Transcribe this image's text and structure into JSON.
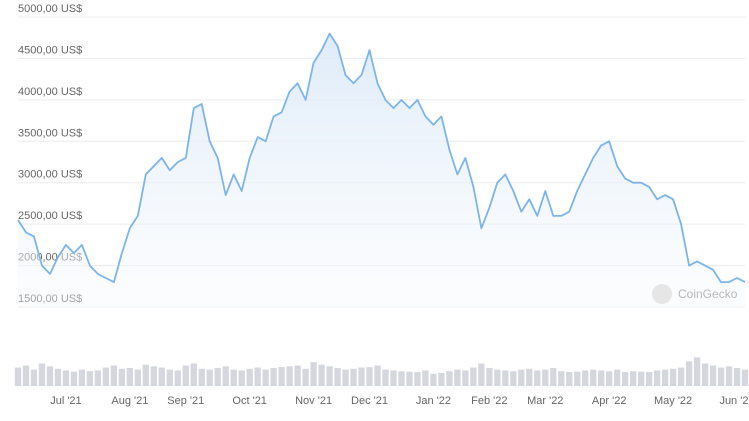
{
  "chart_data": {
    "type": "line",
    "watermark": "CoinGecko",
    "color": "#7cb5ec",
    "grid": true,
    "ylim": [
      1500,
      5000
    ],
    "yticks": [
      {
        "value": 1500,
        "label": "1500,00 US$"
      },
      {
        "value": 2000,
        "label": "2000,00 US$"
      },
      {
        "value": 2500,
        "label": "2500,00 US$"
      },
      {
        "value": 3000,
        "label": "3000,00 US$"
      },
      {
        "value": 3500,
        "label": "3500,00 US$"
      },
      {
        "value": 4000,
        "label": "4000,00 US$"
      },
      {
        "value": 4500,
        "label": "4500,00 US$"
      },
      {
        "value": 5000,
        "label": "5000,00 US$"
      }
    ],
    "categories": [
      null,
      null,
      null,
      null,
      null,
      null,
      "Jul '21",
      null,
      null,
      null,
      null,
      null,
      null,
      null,
      "Aug '21",
      null,
      null,
      null,
      null,
      null,
      null,
      "Sep '21",
      null,
      null,
      null,
      null,
      null,
      null,
      null,
      "Oct '21",
      null,
      null,
      null,
      null,
      null,
      null,
      null,
      "Nov '21",
      null,
      null,
      null,
      null,
      null,
      null,
      "Dec '21",
      null,
      null,
      null,
      null,
      null,
      null,
      null,
      "Jan '22",
      null,
      null,
      null,
      null,
      null,
      null,
      "Feb '22",
      null,
      null,
      null,
      null,
      null,
      null,
      "Mar '22",
      null,
      null,
      null,
      null,
      null,
      null,
      null,
      "Apr '22",
      null,
      null,
      null,
      null,
      null,
      null,
      null,
      "May '22",
      null,
      null,
      null,
      null,
      null,
      null,
      null,
      "Jun '22",
      null
    ],
    "values": [
      2550,
      2400,
      2350,
      2000,
      1900,
      2100,
      2250,
      2150,
      2250,
      2000,
      1900,
      1850,
      1800,
      2150,
      2450,
      2600,
      3100,
      3200,
      3300,
      3150,
      3250,
      3300,
      3900,
      3950,
      3500,
      3300,
      2850,
      3100,
      2900,
      3300,
      3550,
      3500,
      3800,
      3850,
      4100,
      4200,
      4000,
      4450,
      4600,
      4800,
      4650,
      4300,
      4200,
      4300,
      4600,
      4200,
      4000,
      3900,
      4000,
      3900,
      4000,
      3800,
      3700,
      3800,
      3400,
      3100,
      3300,
      2950,
      2450,
      2700,
      3000,
      3100,
      2900,
      2650,
      2800,
      2600,
      2900,
      2600,
      2600,
      2650,
      2900,
      3100,
      3300,
      3450,
      3500,
      3200,
      3050,
      3000,
      3000,
      2950,
      2800,
      2850,
      2800,
      2500,
      2000,
      2050,
      2000,
      1950,
      1800,
      1800,
      1850,
      1800
    ],
    "volume": {
      "color": "#d5d7de",
      "ylim": [
        0,
        100
      ],
      "values": [
        45,
        50,
        40,
        55,
        48,
        42,
        38,
        35,
        40,
        36,
        38,
        45,
        50,
        42,
        44,
        40,
        52,
        48,
        45,
        40,
        38,
        50,
        55,
        42,
        40,
        44,
        48,
        40,
        38,
        42,
        45,
        40,
        44,
        46,
        48,
        50,
        42,
        58,
        52,
        48,
        44,
        40,
        42,
        45,
        46,
        50,
        40,
        38,
        36,
        35,
        34,
        38,
        30,
        32,
        36,
        40,
        38,
        45,
        55,
        44,
        40,
        38,
        36,
        40,
        42,
        38,
        40,
        44,
        36,
        34,
        35,
        38,
        40,
        38,
        36,
        40,
        34,
        36,
        35,
        34,
        38,
        40,
        42,
        45,
        60,
        70,
        55,
        50,
        45,
        48,
        44,
        40
      ]
    }
  }
}
